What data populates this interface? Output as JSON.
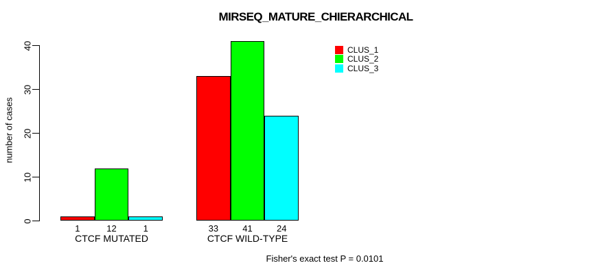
{
  "title": "MIRSEQ_MATURE_CHIERARCHICAL",
  "footer": "Fisher's exact test P = 0.0101",
  "colors": {
    "background": "#ffffff",
    "axis": "#000000",
    "bar_border": "#000000",
    "clus_1": "#ff0000",
    "clus_2": "#00ff00",
    "clus_3": "#00ffff"
  },
  "chart_data": {
    "type": "bar",
    "title": "MIRSEQ_MATURE_CHIERARCHICAL",
    "xlabel": "",
    "ylabel": "number of cases",
    "categories": [
      "CTCF MUTATED",
      "CTCF WILD-TYPE"
    ],
    "series": [
      {
        "name": "CLUS_1",
        "color": "#ff0000",
        "values": [
          1,
          33
        ]
      },
      {
        "name": "CLUS_2",
        "color": "#00ff00",
        "values": [
          12,
          41
        ]
      },
      {
        "name": "CLUS_3",
        "color": "#00ffff",
        "values": [
          1,
          24
        ]
      }
    ],
    "bar_value_labels": [
      [
        "1",
        "12",
        "1"
      ],
      [
        "33",
        "41",
        "24"
      ]
    ],
    "yticks": [
      0,
      10,
      20,
      30,
      40
    ],
    "ylim": [
      0,
      41.5
    ],
    "grid": false,
    "legend_position": "top-right",
    "legend_entries": [
      "CLUS_1",
      "CLUS_2",
      "CLUS_3"
    ],
    "annotation": "Fisher's exact test P = 0.0101"
  }
}
